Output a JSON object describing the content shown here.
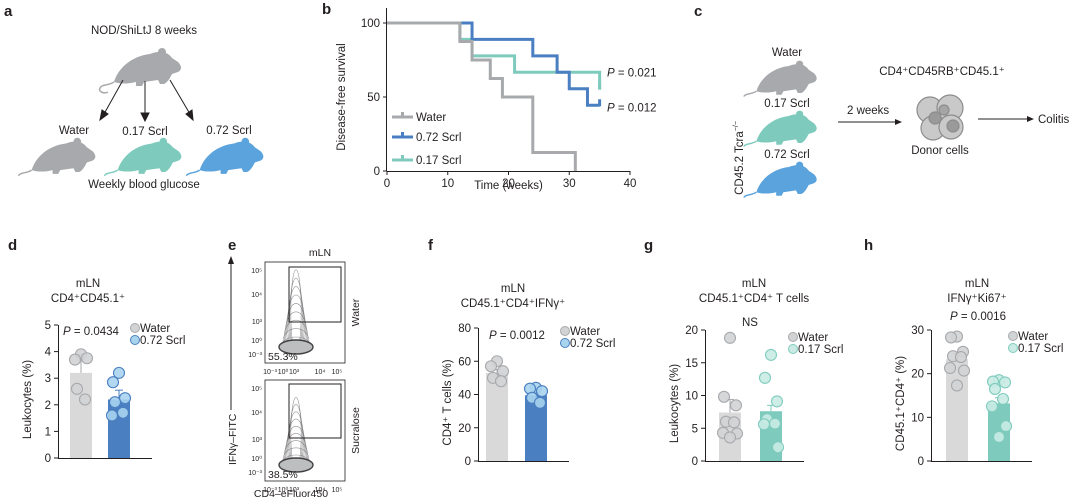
{
  "panels": {
    "a": {
      "label": "a",
      "title": "NOD/ShiLtJ 8 weeks",
      "groups": [
        "Water",
        "0.17 Scrl",
        "0.72 Scrl"
      ],
      "footer": "Weekly blood glucose"
    },
    "c": {
      "label": "c",
      "recipient_label": "CD45.2 Tcra",
      "recipient_sup": "−/−",
      "groups": [
        "Water",
        "0.17 Scrl",
        "0.72 Scrl"
      ],
      "interval": "2 weeks",
      "cell_label": "CD4⁺CD45RB⁺CD45.1⁺",
      "donor_label": "Donor cells",
      "outcome": "Colitis"
    },
    "e": {
      "label": "e",
      "title": "mLN",
      "ylabel": "IFNγ–FITC",
      "xlabel": "CD4–eFluor450",
      "rows": [
        {
          "condition": "Water",
          "gate_percent": "55.3%"
        },
        {
          "condition": "Sucralose",
          "gate_percent": "38.5%"
        }
      ],
      "y_ticks": [
        "10⁵",
        "10⁴",
        "10³",
        "10⁰",
        "10⁻³"
      ],
      "x_ticks": [
        "10⁻³",
        "10⁰",
        "10³",
        "10⁴",
        "10⁵"
      ]
    }
  },
  "colors": {
    "water": "#a7a9ac",
    "water_bar": "#d9d9d9",
    "scrl_017": "#7ecbbd",
    "scrl_017_light": "#c9ebe4",
    "scrl_072": "#4a7fc1",
    "scrl_072_light": "#a9d4ee",
    "mouse_072": "#5ba3dd"
  },
  "chart_data": [
    {
      "id": "b",
      "label": "b",
      "type": "line",
      "subtype": "kaplan-meier",
      "xlabel": "Time (weeks)",
      "ylabel": "Disease-free survival",
      "xlim": [
        0,
        40
      ],
      "ylim": [
        0,
        100
      ],
      "x_ticks": [
        0,
        10,
        20,
        30,
        40
      ],
      "y_ticks": [
        0,
        50,
        100
      ],
      "legend": [
        "Water",
        "0.72 Scrl",
        "0.17 Scrl"
      ],
      "legend_position": "bottom-left",
      "series": [
        {
          "name": "Water",
          "color": "#a7a9ac",
          "steps": [
            [
              0,
              100
            ],
            [
              12,
              87.5
            ],
            [
              14,
              75
            ],
            [
              17,
              62.5
            ],
            [
              19,
              50
            ],
            [
              24,
              12.5
            ],
            [
              31,
              0
            ]
          ]
        },
        {
          "name": "0.72 Scrl",
          "color": "#4a7fc1",
          "steps": [
            [
              0,
              100
            ],
            [
              14,
              88.9
            ],
            [
              24,
              77.8
            ],
            [
              28,
              66.7
            ],
            [
              30,
              55.6
            ],
            [
              33,
              44.4
            ]
          ],
          "end": 35
        },
        {
          "name": "0.17 Scrl",
          "color": "#7ecbbd",
          "steps": [
            [
              0,
              100
            ],
            [
              12,
              88.9
            ],
            [
              14,
              77.8
            ],
            [
              21,
              66.7
            ],
            [
              35,
              55.6
            ]
          ],
          "end": 35
        }
      ],
      "annotations": [
        {
          "text_italic": "P",
          "text": " = 0.021",
          "series": "0.17 Scrl"
        },
        {
          "text_italic": "P",
          "text": " = 0.012",
          "series": "0.72 Scrl"
        }
      ]
    },
    {
      "id": "d",
      "label": "d",
      "type": "bar",
      "title_lines": [
        "mLN",
        "CD4⁺CD45.1⁺"
      ],
      "ylabel": "Leukocytes (%)",
      "ylim": [
        0,
        5
      ],
      "y_ticks": [
        0,
        1,
        2,
        3,
        4,
        5
      ],
      "stat": {
        "italic": "P",
        "text": " = 0.0434"
      },
      "legend": [
        "Water",
        "0.72 Scrl"
      ],
      "legend_position": "top-right",
      "categories": [
        "Water",
        "0.72 Scrl"
      ],
      "values": [
        3.2,
        2.2
      ],
      "errors": [
        0.7,
        0.35
      ],
      "points": [
        [
          3.9,
          3.7,
          3.75,
          2.6,
          2.2
        ],
        [
          3.2,
          2.85,
          2.25,
          2.1,
          1.7,
          1.6
        ]
      ],
      "bar_colors": [
        "#d9d9d9",
        "#4a7fc1"
      ],
      "point_colors": [
        "#d1d3d4",
        "#a9d4ee"
      ],
      "point_strokes": [
        "#a7a9ac",
        "#4a7fc1"
      ]
    },
    {
      "id": "f",
      "label": "f",
      "type": "bar",
      "title_lines": [
        "mLN",
        "CD45.1⁺CD4⁺IFNγ⁺"
      ],
      "ylabel": "CD4⁺ T cells (%)",
      "ylim": [
        0,
        80
      ],
      "y_ticks": [
        0,
        20,
        40,
        60,
        80
      ],
      "stat": {
        "italic": "P",
        "text": " = 0.0012"
      },
      "legend": [
        "Water",
        "0.72 Scrl"
      ],
      "legend_position": "top-right",
      "categories": [
        "Water",
        "0.72 Scrl"
      ],
      "values": [
        53,
        39.5
      ],
      "errors": [
        2,
        1.5
      ],
      "points": [
        [
          60,
          57,
          54,
          50,
          48
        ],
        [
          44,
          43.5,
          42,
          38,
          35
        ]
      ],
      "bar_colors": [
        "#d9d9d9",
        "#4a7fc1"
      ],
      "point_colors": [
        "#d1d3d4",
        "#a9d4ee"
      ],
      "point_strokes": [
        "#a7a9ac",
        "#4a7fc1"
      ]
    },
    {
      "id": "g",
      "label": "g",
      "type": "bar",
      "title_lines": [
        "mLN",
        "CD45.1⁺CD4⁺ T cells"
      ],
      "ylabel": "Leukocytes (%)",
      "ylim": [
        0,
        20
      ],
      "y_ticks": [
        0,
        5,
        10,
        15,
        20
      ],
      "stat": {
        "italic": "",
        "text": "NS"
      },
      "legend": [
        "Water",
        "0.17 Scrl"
      ],
      "legend_position": "top-right",
      "categories": [
        "Water",
        "0.17 Scrl"
      ],
      "values": [
        7.4,
        7.6
      ],
      "errors": [
        2.0,
        0.9
      ],
      "points": [
        [
          18.8,
          9.8,
          8.5,
          6.0,
          5.9,
          4.3,
          4.2,
          3.6
        ],
        [
          16.2,
          12.7,
          9.1,
          6.4,
          5.7,
          5.6,
          2.1
        ]
      ],
      "bar_colors": [
        "#d9d9d9",
        "#7ecbbd"
      ],
      "point_colors": [
        "#d1d3d4",
        "#c9ebe4"
      ],
      "point_strokes": [
        "#a7a9ac",
        "#7ecbbd"
      ]
    },
    {
      "id": "h",
      "label": "h",
      "type": "bar",
      "title_lines": [
        "mLN",
        "IFNγ⁺Ki67⁺"
      ],
      "ylabel": "CD45.1⁺CD4⁺ (%)",
      "ylim": [
        0,
        30
      ],
      "y_ticks": [
        0,
        10,
        20,
        30
      ],
      "stat": {
        "italic": "P",
        "text": " = 0.0016"
      },
      "legend": [
        "Water",
        "0.17 Scrl"
      ],
      "legend_position": "top-right",
      "categories": [
        "Water",
        "0.17 Scrl"
      ],
      "values": [
        23.3,
        13.2
      ],
      "errors": [
        1.3,
        1.3
      ],
      "points": [
        [
          28.5,
          28.3,
          25.0,
          24.0,
          23.8,
          21.3,
          20.7,
          17.3
        ],
        [
          18.5,
          18.2,
          18.0,
          16.5,
          14.2,
          12.5,
          8.0,
          5.5
        ]
      ],
      "bar_colors": [
        "#d9d9d9",
        "#7ecbbd"
      ],
      "point_colors": [
        "#d1d3d4",
        "#c9ebe4"
      ],
      "point_strokes": [
        "#a7a9ac",
        "#7ecbbd"
      ]
    }
  ]
}
